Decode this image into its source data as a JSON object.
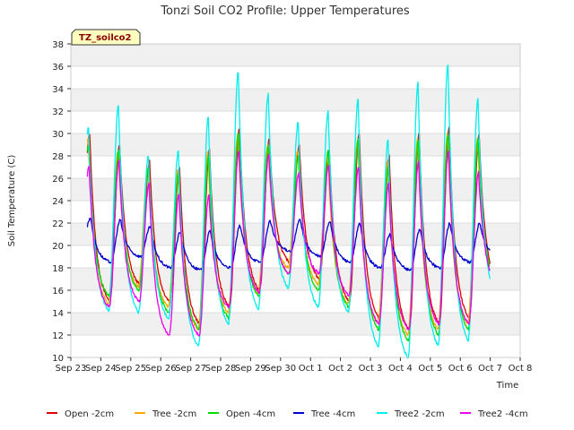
{
  "chart_data": {
    "type": "line",
    "title": "Tonzi Soil CO2 Profile: Upper Temperatures",
    "badge": "TZ_soilco2",
    "xlabel": "Time",
    "ylabel": "Soil Temperature (C)",
    "xlim": [
      "2016-09-23",
      "2016-10-08"
    ],
    "ylim": [
      10,
      38
    ],
    "x_ticks": [
      "Sep 23",
      "Sep 24",
      "Sep 25",
      "Sep 26",
      "Sep 27",
      "Sep 28",
      "Sep 29",
      "Sep 30",
      "Oct 1",
      "Oct 2",
      "Oct 3",
      "Oct 4",
      "Oct 5",
      "Oct 6",
      "Oct 7",
      "Oct 8"
    ],
    "y_ticks": [
      10,
      12,
      14,
      16,
      18,
      20,
      22,
      24,
      26,
      28,
      30,
      32,
      34,
      36,
      38
    ],
    "grid": true,
    "legend_position": "bottom",
    "series": [
      {
        "name": "Open -2cm",
        "color": "#dd0000",
        "daily_min": [
          17.0,
          15.0,
          16.5,
          15.0,
          13.0,
          14.5,
          16.0,
          18.5,
          17.0,
          15.0,
          13.5,
          12.5,
          13.0,
          13.5,
          16.5
        ],
        "daily_max": [
          30.0,
          29.0,
          27.5,
          27.0,
          28.5,
          30.5,
          29.5,
          29.0,
          28.5,
          30.0,
          28.0,
          30.0,
          30.5,
          30.0
        ]
      },
      {
        "name": "Tree -2cm",
        "color": "#ffa500",
        "daily_min": [
          16.8,
          14.8,
          16.3,
          14.5,
          12.5,
          14.0,
          15.8,
          18.0,
          16.5,
          14.8,
          13.0,
          12.0,
          12.5,
          13.0,
          16.3
        ],
        "daily_max": [
          29.5,
          28.5,
          27.0,
          26.8,
          28.3,
          30.0,
          29.0,
          28.5,
          28.0,
          29.5,
          27.5,
          29.5,
          30.0,
          29.5
        ]
      },
      {
        "name": "Open -4cm",
        "color": "#00dd00",
        "daily_min": [
          18.0,
          15.5,
          16.0,
          14.0,
          12.5,
          13.5,
          15.5,
          17.5,
          16.0,
          14.5,
          12.5,
          11.5,
          12.0,
          12.5,
          16.5
        ],
        "daily_max": [
          29.0,
          28.5,
          27.0,
          26.5,
          28.0,
          30.0,
          29.0,
          28.0,
          28.5,
          29.5,
          27.0,
          29.5,
          30.0,
          29.5
        ]
      },
      {
        "name": "Tree -4cm",
        "color": "#0000cc",
        "daily_min": [
          19.2,
          18.5,
          19.0,
          18.0,
          17.8,
          18.0,
          18.5,
          19.5,
          19.0,
          18.5,
          18.0,
          17.8,
          18.0,
          18.5,
          19.0
        ],
        "daily_max": [
          22.5,
          22.3,
          21.7,
          21.2,
          21.3,
          21.8,
          22.2,
          22.3,
          22.2,
          22.0,
          21.0,
          21.5,
          22.0,
          22.0
        ]
      },
      {
        "name": "Tree2 -2cm",
        "color": "#00eeee",
        "daily_min": [
          16.0,
          14.2,
          14.0,
          13.5,
          11.0,
          13.0,
          14.3,
          16.2,
          14.5,
          14.0,
          11.0,
          10.0,
          11.0,
          11.5,
          15.0
        ],
        "daily_max": [
          30.5,
          32.5,
          28.0,
          28.5,
          31.5,
          35.5,
          33.5,
          31.0,
          32.0,
          33.0,
          29.5,
          34.5,
          36.2,
          33.0
        ]
      },
      {
        "name": "Tree2 -4cm",
        "color": "#ee00ee",
        "daily_min": [
          17.5,
          14.5,
          15.0,
          12.0,
          12.0,
          14.5,
          15.8,
          17.5,
          17.5,
          15.5,
          13.0,
          12.5,
          13.0,
          13.0,
          16.5
        ],
        "daily_max": [
          27.0,
          27.5,
          25.5,
          24.5,
          24.5,
          28.5,
          28.0,
          26.5,
          27.2,
          27.0,
          25.5,
          27.5,
          28.5,
          26.5
        ]
      }
    ]
  }
}
